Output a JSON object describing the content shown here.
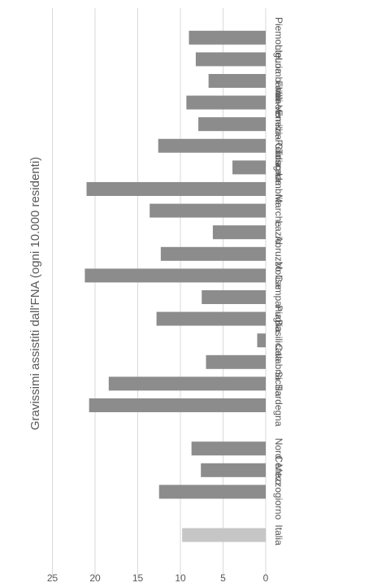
{
  "chart_data": {
    "type": "bar",
    "orientation": "horizontal",
    "rotated": "90deg clockwise",
    "title": "Gravissimi assistiti dall'FNA (ogni 10.000 residenti)",
    "xlabel": "",
    "ylabel": "",
    "xlim": [
      0,
      25
    ],
    "ticks": [
      0,
      5,
      10,
      15,
      20,
      25
    ],
    "grid": true,
    "legend": "none",
    "categories": [
      "Piemonte",
      "Liguria",
      "Lombardia",
      "Veneto",
      "Friuli-Venezia Giulia",
      "Emilia-Romagna",
      "Toscana",
      "Umbria",
      "Marche",
      "Lazio",
      "Abruzzo",
      "Molise",
      "Campania",
      "Puglia",
      "Basilicata",
      "Calabria",
      "Sicilia",
      "Sardegna",
      "",
      "Nord",
      "Centro",
      "Mezzogiorno",
      "",
      "Italia"
    ],
    "values": [
      9.0,
      8.2,
      6.7,
      9.3,
      7.9,
      12.6,
      3.9,
      21.0,
      13.6,
      6.2,
      12.3,
      21.2,
      7.5,
      12.8,
      1.0,
      7.0,
      18.4,
      20.7,
      null,
      8.7,
      7.6,
      12.5,
      null,
      9.8
    ],
    "colors": {
      "bar": "#8c8c8c",
      "highlight": "#c6c6c6",
      "highlight_category": "Italia",
      "grid": "#d9d9d9",
      "text": "#595959"
    }
  }
}
